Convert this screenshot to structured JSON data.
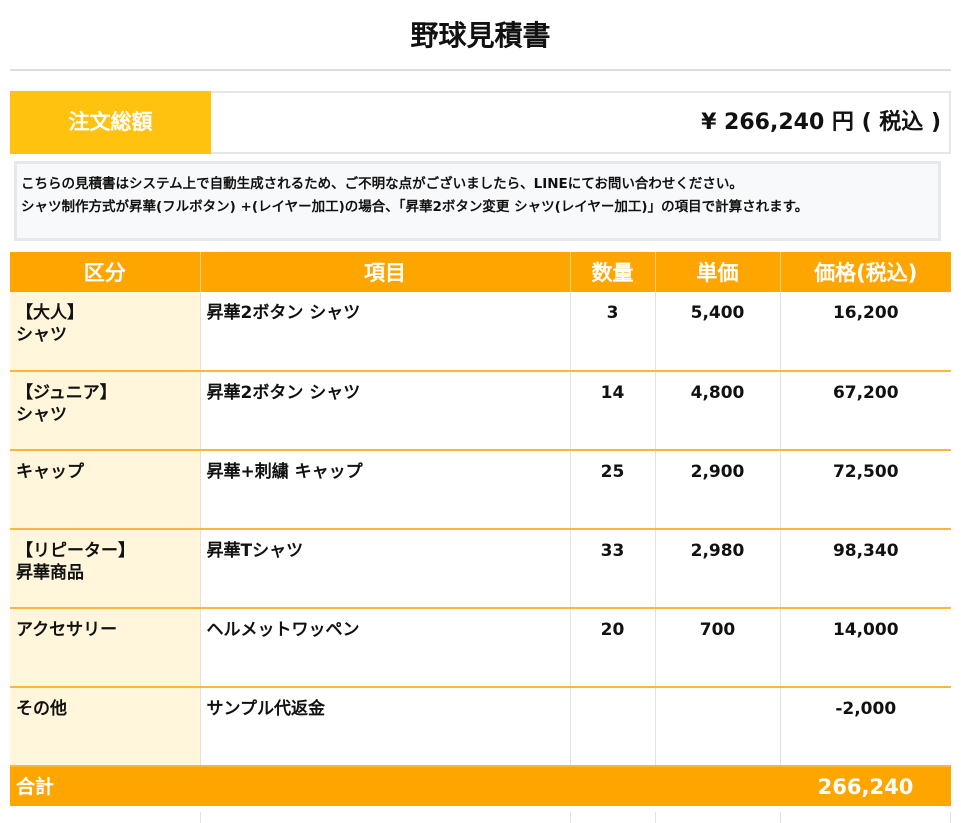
{
  "document": {
    "title": "野球見積書"
  },
  "total": {
    "label": "注文総額",
    "value": "¥ 266,240 円 ( 税込 )"
  },
  "notice": {
    "line1": "こちらの見積書はシステム上で自動生成されるため、ご不明な点がございましたら、LINEにてお問い合わせください。",
    "line2": "シャツ制作方式が昇華(フルボタン) +(レイヤー加工)の場合、「昇華2ボタン変更 シャツ(レイヤー加工)」の項目で計算されます。"
  },
  "table": {
    "headers": [
      "区分",
      "項目",
      "数量",
      "単価",
      "価格(税込)"
    ],
    "rows": [
      {
        "category_line1": "【大人】",
        "category_line2": "シャツ",
        "item": "昇華2ボタン シャツ",
        "qty": "3",
        "unit": "5,400",
        "price": "16,200"
      },
      {
        "category_line1": "【ジュニア】",
        "category_line2": "シャツ",
        "item": "昇華2ボタン シャツ",
        "qty": "14",
        "unit": "4,800",
        "price": "67,200"
      },
      {
        "category_line1": "キャップ",
        "category_line2": "",
        "item": "昇華+刺繍 キャップ",
        "qty": "25",
        "unit": "2,900",
        "price": "72,500"
      },
      {
        "category_line1": "【リピーター】",
        "category_line2": "昇華商品",
        "item": "昇華Tシャツ",
        "qty": "33",
        "unit": "2,980",
        "price": "98,340"
      },
      {
        "category_line1": "アクセサリー",
        "category_line2": "",
        "item": "ヘルメットワッペン",
        "qty": "20",
        "unit": "700",
        "price": "14,000"
      },
      {
        "category_line1": "その他",
        "category_line2": "",
        "item": "サンプル代返金",
        "qty": "",
        "unit": "",
        "price": "-2,000"
      }
    ],
    "sum_label": "合計",
    "sum_value": "266,240"
  },
  "colors": {
    "header_orange": "#ffa500",
    "total_label_yellow": "#ffc20e",
    "category_cell": "#fff6dc"
  }
}
